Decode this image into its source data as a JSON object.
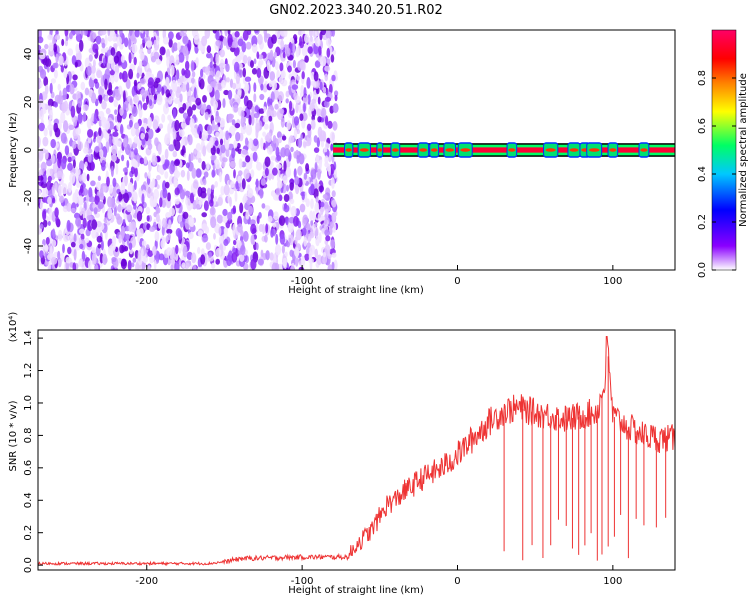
{
  "title": "GN02.2023.340.20.51.R02",
  "chart_data": [
    {
      "type": "heatmap",
      "xlabel": "Height of straight line (km)",
      "ylabel": "Frequency (Hz)",
      "xlim": [
        -270,
        140
      ],
      "ylim": [
        -50,
        50
      ],
      "x_ticks": [
        -200,
        -100,
        0,
        100
      ],
      "x_tick_labels": [
        "-200",
        "-100",
        "0",
        "100"
      ],
      "y_ticks": [
        -40,
        -20,
        0,
        20,
        40
      ],
      "y_tick_labels": [
        "-40",
        "-20",
        "0",
        "20",
        "40"
      ],
      "noise_region_x": [
        -270,
        -78
      ],
      "signal_band": {
        "x": [
          -80,
          140
        ],
        "frequency_center": 0,
        "frequency_halfwidth": 2
      },
      "signal_hotspots_x": [
        -70,
        -60,
        -50,
        -40,
        -22,
        -15,
        -5,
        5,
        35,
        60,
        75,
        82,
        88,
        100,
        120
      ],
      "colorbar": {
        "label": "Normalized spectral amplitude",
        "range": [
          0,
          1
        ],
        "ticks": [
          0.0,
          0.2,
          0.4,
          0.6,
          0.8
        ],
        "tick_labels": [
          "0.0",
          "0.2",
          "0.4",
          "0.6",
          "0.8"
        ],
        "colors": [
          "#ffffff",
          "#8a00ff",
          "#0000ff",
          "#00c8ff",
          "#00ff64",
          "#ffff00",
          "#ff8000",
          "#ff0000",
          "#ff0066"
        ]
      },
      "grid": false
    },
    {
      "type": "line",
      "xlabel": "Height of straight line (km)",
      "ylabel": "SNR (10 * v/v)",
      "y_multiplier_label": "(x10⁴)",
      "xlim": [
        -270,
        140
      ],
      "ylim": [
        -0.03,
        1.45
      ],
      "x_ticks": [
        -200,
        -100,
        0,
        100
      ],
      "x_tick_labels": [
        "-200",
        "-100",
        "0",
        "100"
      ],
      "y_ticks": [
        0.0,
        0.2,
        0.4,
        0.6,
        0.8,
        1.0,
        1.2,
        1.4
      ],
      "y_tick_labels": [
        "0.0",
        "0.2",
        "0.4",
        "0.6",
        "0.8",
        "1.0",
        "1.2",
        "1.4"
      ],
      "series": [
        {
          "color": "#ee3333",
          "x": [
            -270,
            -200,
            -160,
            -150,
            -140,
            -100,
            -70,
            -65,
            -60,
            -55,
            -50,
            -45,
            -40,
            -35,
            -30,
            -25,
            -20,
            -10,
            0,
            10,
            20,
            30,
            40,
            50,
            60,
            70,
            80,
            90,
            95,
            96,
            100,
            110,
            120,
            130,
            140
          ],
          "y": [
            0.01,
            0.01,
            0.01,
            0.02,
            0.04,
            0.05,
            0.05,
            0.13,
            0.17,
            0.22,
            0.3,
            0.38,
            0.4,
            0.45,
            0.48,
            0.52,
            0.55,
            0.6,
            0.68,
            0.78,
            0.88,
            0.95,
            0.97,
            0.94,
            0.92,
            0.9,
            0.92,
            0.95,
            1.12,
            1.41,
            0.92,
            0.85,
            0.8,
            0.78,
            0.78
          ]
        }
      ],
      "dropouts_x": [
        30,
        42,
        48,
        55,
        60,
        65,
        70,
        74,
        78,
        82,
        86,
        90,
        93,
        97,
        101,
        105,
        110,
        115,
        120,
        128,
        134
      ],
      "grid": false
    }
  ]
}
